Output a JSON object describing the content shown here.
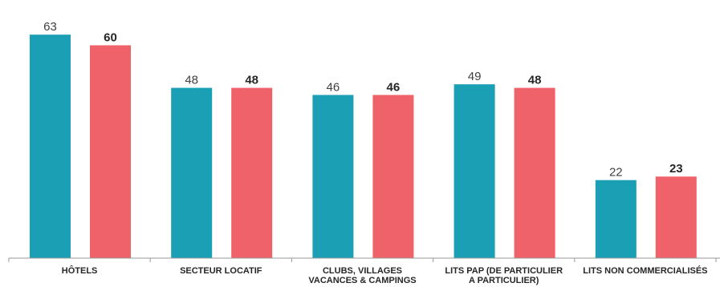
{
  "chart_data": {
    "type": "bar",
    "title": "",
    "xlabel": "",
    "ylabel": "",
    "ylim": [
      0,
      70
    ],
    "grid": false,
    "categories": [
      [
        "HÔTELS"
      ],
      [
        "SECTEUR LOCATIF"
      ],
      [
        "CLUBS, VILLAGES",
        "VACANCES & CAMPINGS"
      ],
      [
        "LITS PAP (DE PARTICULIER",
        "A PARTICULIER)"
      ],
      [
        "LITS NON COMMERCIALISÉS"
      ]
    ],
    "series": [
      {
        "color": "#1a9fb5",
        "label_style": "regular",
        "values": [
          63,
          48,
          46,
          49,
          22
        ]
      },
      {
        "color": "#f0626a",
        "label_style": "bold",
        "values": [
          60,
          48,
          46,
          48,
          23
        ]
      }
    ],
    "axis_color": "#999999"
  }
}
